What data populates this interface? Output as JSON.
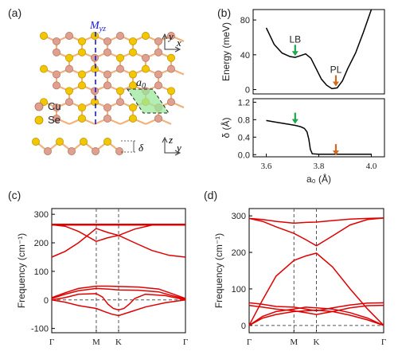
{
  "panels": {
    "a": {
      "label": "(a)",
      "mirror_label": "M",
      "mirror_sub": "yz",
      "lattice_label": "a",
      "lattice_sub": "0",
      "legend": [
        {
          "name": "Cu",
          "color": "#e0a090"
        },
        {
          "name": "Se",
          "color": "#f2c600"
        }
      ],
      "delta_label": "δ",
      "axes_top": [
        "y",
        "x"
      ],
      "axes_side": [
        "z",
        "y"
      ],
      "colors": {
        "bond": "#f2b27a",
        "cu": "#e0a090",
        "se": "#f2c600",
        "mirror": "#1a1adb",
        "cell": "#9be89b"
      }
    },
    "b": {
      "label": "(b)"
    },
    "c": {
      "label": "(c)"
    },
    "d": {
      "label": "(d)"
    }
  },
  "chart_data": [
    {
      "id": "b-top",
      "type": "line",
      "ylabel": "Energy (meV)",
      "xlim": [
        3.55,
        4.05
      ],
      "ylim": [
        -5,
        92
      ],
      "yticks": [
        0,
        40,
        80
      ],
      "series": [
        {
          "color": "#000000",
          "x": [
            3.6,
            3.63,
            3.66,
            3.69,
            3.71,
            3.73,
            3.75,
            3.77,
            3.79,
            3.81,
            3.83,
            3.85,
            3.87,
            3.89,
            3.91,
            3.94,
            3.97,
            4.0
          ],
          "y": [
            71,
            52,
            42,
            38,
            37,
            39,
            41,
            36,
            24,
            12,
            5,
            1,
            2,
            10,
            24,
            42,
            66,
            92
          ]
        }
      ],
      "annotations": [
        {
          "text": "LB",
          "x": 3.71,
          "y": 46,
          "color": "#1aa84a"
        },
        {
          "text": "PL",
          "x": 3.865,
          "y": 11,
          "color": "#d2691e"
        }
      ]
    },
    {
      "id": "b-bottom",
      "type": "line",
      "ylabel": "δ (Å)",
      "xlabel": "a₀ (Å)",
      "xlim": [
        3.55,
        4.05
      ],
      "ylim": [
        -0.05,
        1.28
      ],
      "xticks": [
        3.6,
        3.8,
        4.0
      ],
      "xticklabels": [
        "3.6",
        "3.8",
        "4.0"
      ],
      "yticks": [
        0.0,
        0.4,
        0.8,
        1.2
      ],
      "yticklabels": [
        "0.0",
        "0.4",
        "0.8",
        "1.2"
      ],
      "series": [
        {
          "color": "#000000",
          "x": [
            3.6,
            3.63,
            3.66,
            3.69,
            3.71,
            3.73,
            3.745,
            3.755,
            3.762,
            3.768,
            3.775,
            3.8,
            3.85,
            3.9,
            3.95,
            4.0
          ],
          "y": [
            0.78,
            0.75,
            0.72,
            0.69,
            0.67,
            0.64,
            0.6,
            0.52,
            0.35,
            0.12,
            0.02,
            0.01,
            0.01,
            0.01,
            0.01,
            0.01
          ]
        }
      ],
      "annotations": [
        {
          "text": "",
          "x": 3.71,
          "y": 0.85,
          "color": "#1aa84a"
        },
        {
          "text": "",
          "x": 3.865,
          "y": 0.13,
          "color": "#d2691e"
        }
      ]
    },
    {
      "id": "c",
      "type": "line",
      "ylabel": "Frequency (cm⁻¹)",
      "xlim": [
        0,
        1
      ],
      "ylim": [
        -115,
        320
      ],
      "yticks": [
        -100,
        0,
        100,
        200,
        300
      ],
      "xticks": [
        0,
        0.333,
        0.5,
        1
      ],
      "xticklabels": [
        "Γ",
        "M",
        "K",
        "Γ"
      ],
      "zero_line": true,
      "series": [
        {
          "color": "#e00000",
          "x": [
            0,
            0.333,
            0.5,
            1
          ],
          "y": [
            265,
            265,
            265,
            265
          ]
        },
        {
          "color": "#e00000",
          "x": [
            0,
            0.333,
            0.5,
            1
          ],
          "y": [
            262,
            262,
            262,
            262
          ]
        },
        {
          "color": "#e00000",
          "x": [
            0,
            0.1,
            0.2,
            0.333,
            0.42,
            0.5,
            0.62,
            0.75,
            0.88,
            1
          ],
          "y": [
            263,
            258,
            240,
            205,
            218,
            226,
            248,
            262,
            264,
            265
          ]
        },
        {
          "color": "#e00000",
          "x": [
            0,
            0.1,
            0.2,
            0.333,
            0.42,
            0.5,
            0.62,
            0.75,
            0.88,
            1
          ],
          "y": [
            150,
            170,
            200,
            250,
            236,
            226,
            200,
            173,
            156,
            150
          ]
        },
        {
          "color": "#e00000",
          "x": [
            0,
            0.1,
            0.2,
            0.333,
            0.42,
            0.5,
            0.65,
            0.8,
            0.9,
            1
          ],
          "y": [
            8,
            25,
            40,
            48,
            48,
            47,
            45,
            38,
            22,
            5
          ]
        },
        {
          "color": "#e00000",
          "x": [
            0,
            0.1,
            0.2,
            0.333,
            0.42,
            0.5,
            0.65,
            0.8,
            0.9,
            1
          ],
          "y": [
            5,
            20,
            32,
            40,
            38,
            35,
            34,
            28,
            15,
            3
          ]
        },
        {
          "color": "#e00000",
          "x": [
            0,
            0.1,
            0.2,
            0.333,
            0.38,
            0.42,
            0.46,
            0.5,
            0.54,
            0.58,
            0.62,
            0.7,
            0.85,
            1
          ],
          "y": [
            0,
            8,
            20,
            22,
            10,
            -15,
            -30,
            -35,
            -30,
            -15,
            5,
            20,
            15,
            0
          ]
        },
        {
          "color": "#e00000",
          "x": [
            0,
            0.1,
            0.2,
            0.333,
            0.4,
            0.45,
            0.5,
            0.6,
            0.7,
            0.85,
            1
          ],
          "y": [
            0,
            -8,
            -20,
            -30,
            -42,
            -50,
            -55,
            -40,
            -25,
            -10,
            0
          ]
        }
      ]
    },
    {
      "id": "d",
      "type": "line",
      "ylabel": "Frequency (cm⁻¹)",
      "xlim": [
        0,
        1
      ],
      "ylim": [
        -20,
        320
      ],
      "yticks": [
        0,
        100,
        200,
        300
      ],
      "xticks": [
        0,
        0.333,
        0.5,
        1
      ],
      "xticklabels": [
        "Γ",
        "M",
        "K",
        "Γ"
      ],
      "zero_line": true,
      "series": [
        {
          "color": "#e00000",
          "x": [
            0,
            0.1,
            0.2,
            0.333,
            0.42,
            0.5,
            0.62,
            0.75,
            0.88,
            1
          ],
          "y": [
            293,
            290,
            285,
            280,
            282,
            283,
            287,
            291,
            293,
            294
          ]
        },
        {
          "color": "#e00000",
          "x": [
            0,
            0.1,
            0.2,
            0.333,
            0.42,
            0.5,
            0.62,
            0.75,
            0.88,
            1
          ],
          "y": [
            293,
            285,
            270,
            252,
            235,
            218,
            245,
            275,
            290,
            294
          ]
        },
        {
          "color": "#e00000",
          "x": [
            0,
            0.1,
            0.2,
            0.333,
            0.42,
            0.5,
            0.62,
            0.75,
            0.88,
            1
          ],
          "y": [
            0,
            70,
            135,
            178,
            190,
            198,
            160,
            100,
            45,
            0
          ]
        },
        {
          "color": "#e00000",
          "x": [
            0,
            0.1,
            0.2,
            0.333,
            0.42,
            0.5,
            0.62,
            0.75,
            0.88,
            1
          ],
          "y": [
            0,
            25,
            38,
            45,
            50,
            48,
            45,
            35,
            20,
            0
          ]
        },
        {
          "color": "#e00000",
          "x": [
            0,
            0.1,
            0.2,
            0.333,
            0.42,
            0.5,
            0.62,
            0.75,
            0.88,
            1
          ],
          "y": [
            0,
            20,
            30,
            38,
            40,
            42,
            38,
            28,
            15,
            0
          ]
        },
        {
          "color": "#e00000",
          "x": [
            0,
            0.1,
            0.2,
            0.333,
            0.42,
            0.5,
            0.62,
            0.75,
            0.88,
            1
          ],
          "y": [
            62,
            58,
            52,
            50,
            45,
            40,
            48,
            56,
            61,
            62
          ]
        },
        {
          "color": "#e00000",
          "x": [
            0,
            0.1,
            0.2,
            0.333,
            0.42,
            0.5,
            0.62,
            0.75,
            0.88,
            1
          ],
          "y": [
            55,
            50,
            45,
            40,
            35,
            30,
            38,
            48,
            54,
            55
          ]
        }
      ]
    }
  ]
}
